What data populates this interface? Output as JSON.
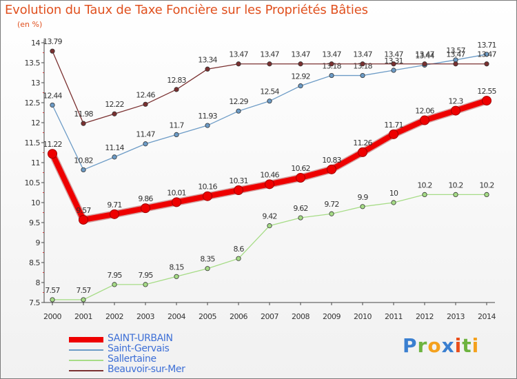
{
  "chart_data": {
    "type": "line",
    "title": "Evolution du Taux de Taxe Foncière sur les Propriétés Bâties",
    "ylabel": "(en %)",
    "xlabel": "",
    "x": [
      "2000",
      "2001",
      "2002",
      "2003",
      "2004",
      "2005",
      "2006",
      "2007",
      "2008",
      "2009",
      "2010",
      "2011",
      "2012",
      "2013",
      "2014"
    ],
    "ylim": [
      7.5,
      14
    ],
    "yticks": [
      "7.5",
      "8",
      "8.5",
      "9",
      "9.5",
      "10",
      "10.5",
      "11",
      "11.5",
      "12",
      "12.5",
      "13",
      "13.5",
      "14"
    ],
    "grid": false,
    "legend_position": "bottom-left",
    "series": [
      {
        "name": "SAINT-URBAIN",
        "color": "#ee0000",
        "highlight": true,
        "values": [
          11.22,
          9.57,
          9.71,
          9.86,
          10.01,
          10.16,
          10.31,
          10.46,
          10.62,
          10.83,
          11.26,
          11.71,
          12.06,
          12.3,
          12.55
        ],
        "labels": [
          "11.22",
          "9.57",
          "9.71",
          "9.86",
          "10.01",
          "10.16",
          "10.31",
          "10.46",
          "10.62",
          "10.83",
          "11.26",
          "11.71",
          "12.06",
          "12.3",
          "12.55"
        ]
      },
      {
        "name": "Saint-Gervais",
        "color": "#6c9bc6",
        "highlight": false,
        "values": [
          12.44,
          10.82,
          11.14,
          11.47,
          11.7,
          11.93,
          12.29,
          12.54,
          12.92,
          13.18,
          13.18,
          13.31,
          13.44,
          13.57,
          13.71
        ],
        "labels": [
          "12.44",
          "10.82",
          "11.14",
          "11.47",
          "11.7",
          "11.93",
          "12.29",
          "12.54",
          "12.92",
          "13.18",
          "13.18",
          "13.31",
          "13.44",
          "13.57",
          "13.71"
        ]
      },
      {
        "name": "Sallertaine",
        "color": "#a6dc86",
        "highlight": false,
        "values": [
          7.57,
          7.57,
          7.95,
          7.95,
          8.15,
          8.35,
          8.6,
          9.42,
          9.62,
          9.72,
          9.9,
          10,
          10.2,
          10.2,
          10.2
        ],
        "labels": [
          "7.57",
          "7.57",
          "7.95",
          "7.95",
          "8.15",
          "8.35",
          "8.6",
          "9.42",
          "9.62",
          "9.72",
          "9.9",
          "10",
          "10.2",
          "10.2",
          "10.2"
        ]
      },
      {
        "name": "Beauvoir-sur-Mer",
        "color": "#7a3030",
        "highlight": false,
        "values": [
          13.79,
          11.98,
          12.22,
          12.46,
          12.83,
          13.34,
          13.47,
          13.47,
          13.47,
          13.47,
          13.47,
          13.47,
          13.47,
          13.47,
          13.47
        ],
        "labels": [
          "13.79",
          "11.98",
          "12.22",
          "12.46",
          "12.83",
          "13.34",
          "13.47",
          "13.47",
          "13.47",
          "13.47",
          "13.47",
          "13.47",
          "13.47",
          "13.47",
          "13.47"
        ]
      }
    ]
  },
  "logo": {
    "letters": [
      "P",
      "r",
      "o",
      "x",
      "i",
      "t",
      "i"
    ],
    "colors": [
      "#3a7fd0",
      "#6db33f",
      "#f4a11d",
      "#3a7fd0",
      "#e94e1b",
      "#6db33f",
      "#f4a11d"
    ]
  }
}
